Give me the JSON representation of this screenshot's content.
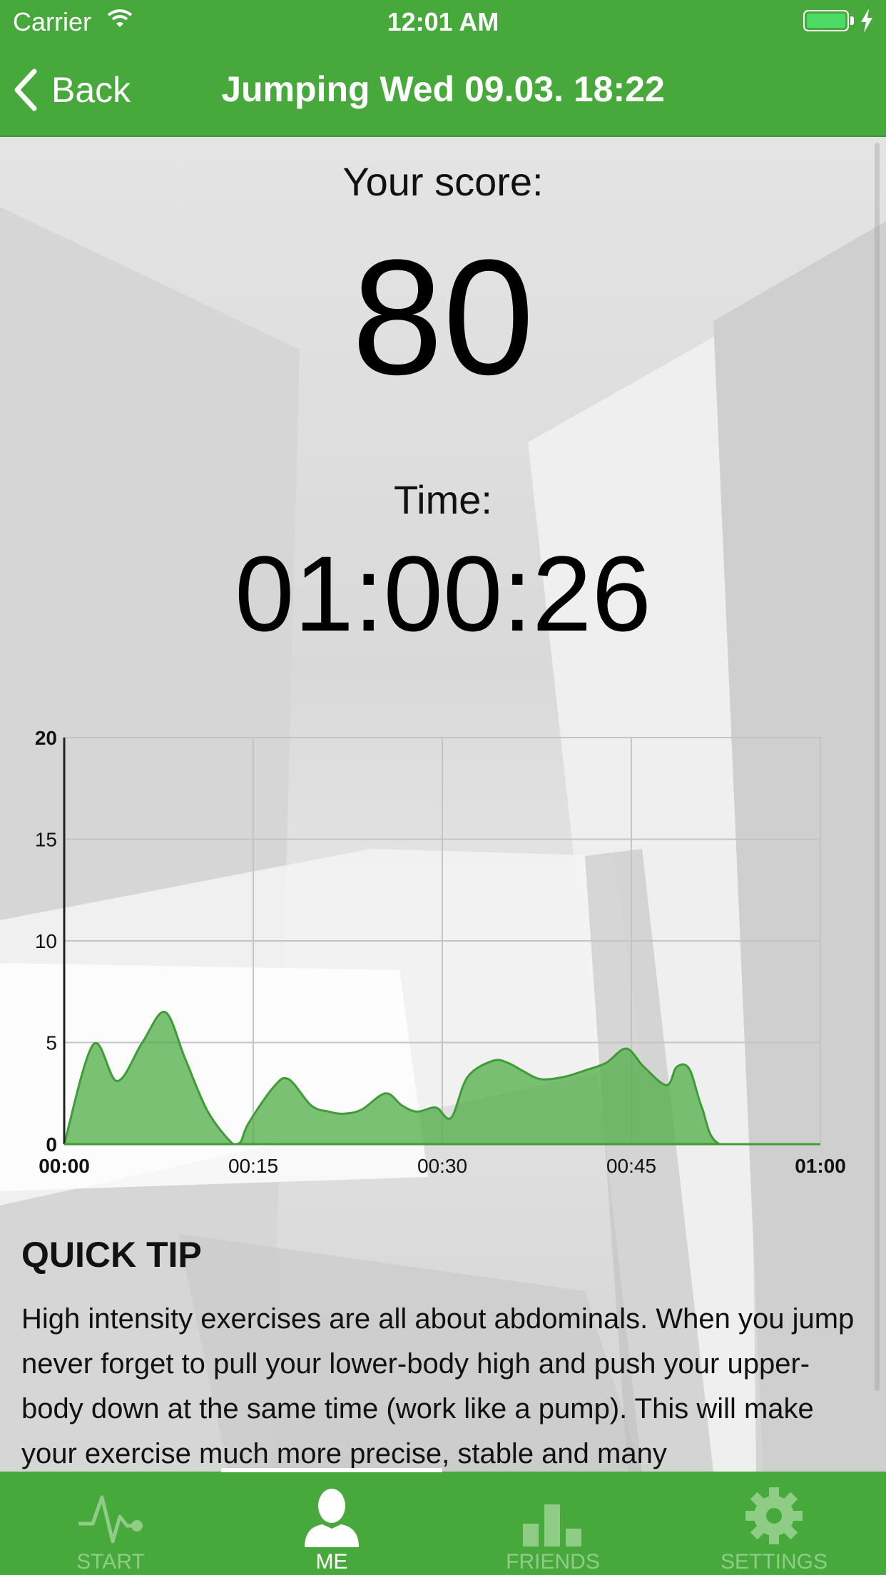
{
  "status_bar": {
    "carrier": "Carrier",
    "time": "12:01 AM"
  },
  "nav": {
    "back_label": "Back",
    "title": "Jumping Wed 09.03. 18:22"
  },
  "score": {
    "label": "Your score:",
    "value": "80"
  },
  "time": {
    "label": "Time:",
    "value": "01:00:26"
  },
  "chart_data": {
    "type": "area",
    "x_tick_labels": [
      "00:00",
      "00:15",
      "00:30",
      "00:45",
      "01:00"
    ],
    "y_tick_labels": [
      "0",
      "5",
      "10",
      "15",
      "20"
    ],
    "ylim": [
      0,
      20
    ],
    "xlim_seconds": [
      0,
      60
    ],
    "grid": true,
    "series": [
      {
        "x_seconds": [
          0,
          2.3,
          4.2,
          6.2,
          8.0,
          9.6,
          11.4,
          13.4,
          14.0,
          14.6,
          16.6,
          17.8,
          19.6,
          21.0,
          22.2,
          23.6,
          25.5,
          26.8,
          28.0,
          29.5,
          30.7,
          32.0,
          34.0,
          35.2,
          36.4,
          37.8,
          39.6,
          41.2,
          43.0,
          44.6,
          46.0,
          47.8,
          48.6,
          49.6,
          50.6,
          52.0,
          56.5,
          60.0
        ],
        "values": [
          0,
          4.9,
          3.1,
          5.0,
          6.5,
          4.2,
          1.6,
          0,
          0.1,
          1.0,
          2.8,
          3.2,
          1.9,
          1.6,
          1.5,
          1.7,
          2.5,
          1.9,
          1.6,
          1.8,
          1.3,
          3.3,
          4.1,
          4.0,
          3.6,
          3.2,
          3.3,
          3.6,
          4.0,
          4.7,
          3.8,
          2.9,
          3.8,
          3.7,
          1.8,
          0,
          0,
          0
        ],
        "color": "#4fad46"
      }
    ]
  },
  "tip": {
    "title": "QUICK TIP",
    "text": "High intensity exercises are all about abdominals. When you jump never forget to pull your lower-body high and push your upper-body down at the same time (work like a pump). This will make your exercise much more precise, stable and many"
  },
  "tabs": [
    {
      "label": "START",
      "icon": "pulse-icon",
      "active": false
    },
    {
      "label": "ME",
      "icon": "person-icon",
      "active": true
    },
    {
      "label": "FRIENDS",
      "icon": "bar-chart-icon",
      "active": false
    },
    {
      "label": "SETTINGS",
      "icon": "gear-icon",
      "active": false
    }
  ],
  "colors": {
    "accent": "#47a93c",
    "chart_fill": "#4fad46",
    "inactive_tab": "#8fcd87"
  }
}
